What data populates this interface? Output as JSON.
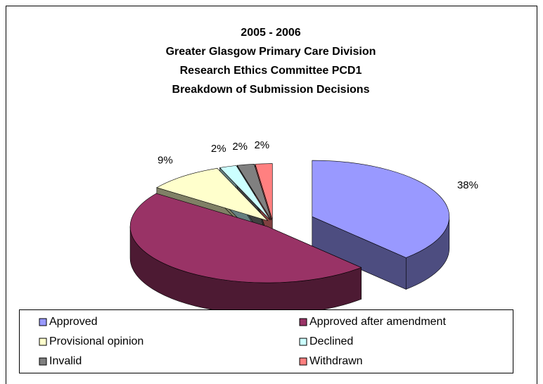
{
  "chart_data": {
    "type": "pie3d",
    "title": [
      "2005 - 2006",
      "Greater Glasgow Primary Care Division",
      "Research Ethics Committee PCD1",
      "Breakdown of Submission Decisions"
    ],
    "categories": [
      "Approved",
      "Approved after amendment",
      "Provisional opinion",
      "Declined",
      "Invalid",
      "Withdrawn"
    ],
    "values": [
      38,
      47,
      9,
      2,
      2,
      2
    ],
    "value_labels": [
      "38%",
      "47%",
      "9%",
      "2%",
      "2%",
      "2%"
    ],
    "colors": [
      "#9999ff",
      "#993366",
      "#ffffcc",
      "#ccffff",
      "#808080",
      "#ff8080"
    ],
    "legend": "bottom"
  }
}
